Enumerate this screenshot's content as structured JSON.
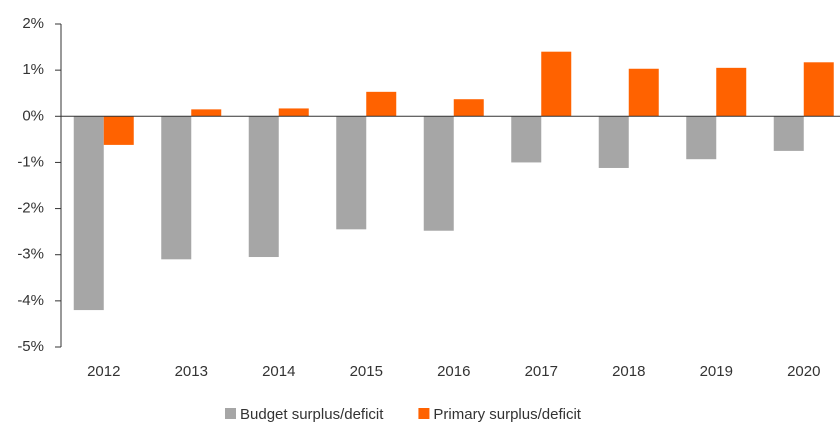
{
  "chart_data": {
    "type": "bar",
    "categories": [
      "2012",
      "2013",
      "2014",
      "2015",
      "2016",
      "2017",
      "2018",
      "2019",
      "2020"
    ],
    "series": [
      {
        "name": "Budget surplus/deficit",
        "color": "#a6a6a6",
        "values": [
          -4.2,
          -3.1,
          -3.05,
          -2.45,
          -2.48,
          -1.0,
          -1.12,
          -0.93,
          -0.75
        ]
      },
      {
        "name": "Primary surplus/deficit",
        "color": "#ff6200",
        "values": [
          -0.62,
          0.15,
          0.17,
          0.53,
          0.37,
          1.4,
          1.03,
          1.05,
          1.17
        ]
      }
    ],
    "ylim": [
      -5,
      2
    ],
    "yticks": [
      {
        "value": -5,
        "label": "-5%"
      },
      {
        "value": -4,
        "label": "-4%"
      },
      {
        "value": -3,
        "label": "-3%"
      },
      {
        "value": -2,
        "label": "-2%"
      },
      {
        "value": -1,
        "label": "-1%"
      },
      {
        "value": 0,
        "label": "0%"
      },
      {
        "value": 1,
        "label": "1%"
      },
      {
        "value": 2,
        "label": "2%"
      }
    ],
    "legend": "bottom"
  }
}
